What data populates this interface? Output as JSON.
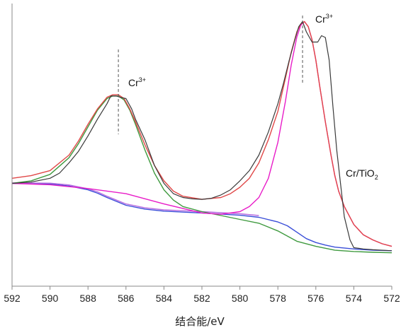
{
  "chart_data": {
    "type": "line",
    "title": "",
    "xlabel": "结合能/eV",
    "ylabel": "",
    "xlim": [
      592,
      572
    ],
    "x_reversed": true,
    "grid": false,
    "ticks": [
      "592",
      "590",
      "588",
      "586",
      "584",
      "582",
      "580",
      "578",
      "576",
      "574",
      "572"
    ],
    "annotations": {
      "peak_left": {
        "base": "Cr",
        "sup": "3+",
        "x": 586.4
      },
      "peak_right": {
        "base": "Cr",
        "sup": "3+",
        "x": 576.7
      },
      "sample": {
        "base": "Cr/TiO",
        "sub": "2"
      }
    },
    "colors": {
      "measured": "#3a3a3a",
      "fit_envelope": "#e04848",
      "component_right": "#e81cc8",
      "component_left": "#3f9a3f",
      "background": "#3a4ed8",
      "background_alt": "#b86ce0",
      "marker": "#555555"
    },
    "series": [
      {
        "role": "measured",
        "x": [
          592,
          591,
          590,
          589.5,
          589,
          588.5,
          588,
          587.5,
          587,
          586.8,
          586.5,
          586.3,
          586,
          585.7,
          585.5,
          585,
          584.5,
          584,
          583.5,
          583,
          582.5,
          582,
          581.5,
          581,
          580.5,
          580,
          579.5,
          579,
          578.5,
          578,
          577.7,
          577.4,
          577.1,
          576.9,
          576.7,
          576.5,
          576.2,
          575.9,
          575.7,
          575.5,
          575.3,
          575.1,
          574.9,
          574.7,
          574.5,
          574.2,
          574,
          573.5,
          573,
          572.5,
          572
        ],
        "y": [
          0.4,
          0.405,
          0.42,
          0.44,
          0.48,
          0.525,
          0.585,
          0.65,
          0.71,
          0.74,
          0.74,
          0.735,
          0.73,
          0.69,
          0.65,
          0.57,
          0.47,
          0.4,
          0.36,
          0.345,
          0.34,
          0.338,
          0.342,
          0.355,
          0.375,
          0.41,
          0.45,
          0.51,
          0.6,
          0.71,
          0.79,
          0.88,
          0.96,
          1.01,
          1.03,
          0.99,
          0.95,
          0.95,
          0.975,
          0.968,
          0.88,
          0.7,
          0.53,
          0.4,
          0.27,
          0.18,
          0.15,
          0.145,
          0.142,
          0.14,
          0.138
        ]
      },
      {
        "role": "fit_envelope",
        "x": [
          592,
          591,
          590,
          589,
          588.5,
          588,
          587.5,
          587,
          586.7,
          586.4,
          586.1,
          585.8,
          585.5,
          585,
          584.5,
          584,
          583.5,
          583,
          582,
          581,
          580.5,
          580,
          579.5,
          579,
          578.5,
          578,
          577.6,
          577.3,
          577,
          576.8,
          576.6,
          576.4,
          576.2,
          576,
          575.8,
          575.5,
          575.2,
          575,
          574.8,
          574.5,
          574,
          573.5,
          573,
          572.5,
          572
        ],
        "y": [
          0.42,
          0.43,
          0.45,
          0.51,
          0.565,
          0.63,
          0.69,
          0.735,
          0.745,
          0.745,
          0.73,
          0.69,
          0.64,
          0.55,
          0.47,
          0.41,
          0.37,
          0.35,
          0.338,
          0.345,
          0.36,
          0.385,
          0.42,
          0.48,
          0.57,
          0.68,
          0.81,
          0.91,
          0.99,
          1.02,
          1.03,
          1.01,
          0.96,
          0.88,
          0.78,
          0.64,
          0.51,
          0.43,
          0.37,
          0.31,
          0.24,
          0.2,
          0.18,
          0.165,
          0.155
        ]
      },
      {
        "role": "component_right",
        "x": [
          592,
          590,
          588,
          586,
          584,
          582,
          581,
          580,
          579.5,
          579,
          578.5,
          578,
          577.6,
          577.3,
          577,
          576.8,
          576.6,
          576.4,
          576.2,
          576,
          575.8,
          575.5,
          575.2,
          575,
          574.8,
          574.5,
          574,
          573.5,
          573,
          572.5,
          572
        ],
        "y": [
          0.4,
          0.395,
          0.38,
          0.36,
          0.32,
          0.285,
          0.28,
          0.29,
          0.31,
          0.345,
          0.42,
          0.56,
          0.72,
          0.86,
          0.97,
          1.015,
          1.03,
          1.01,
          0.96,
          0.88,
          0.78,
          0.64,
          0.51,
          0.43,
          0.37,
          0.31,
          0.24,
          0.2,
          0.18,
          0.165,
          0.155
        ]
      },
      {
        "role": "component_left",
        "x": [
          592,
          591,
          590,
          589,
          588.5,
          588,
          587.5,
          587,
          586.7,
          586.4,
          586.1,
          585.8,
          585.5,
          585,
          584.5,
          584,
          583.5,
          583,
          582,
          581,
          580,
          579,
          578,
          577,
          576,
          575,
          574,
          573,
          572
        ],
        "y": [
          0.4,
          0.41,
          0.435,
          0.5,
          0.555,
          0.62,
          0.685,
          0.73,
          0.74,
          0.74,
          0.725,
          0.685,
          0.63,
          0.53,
          0.44,
          0.375,
          0.335,
          0.31,
          0.29,
          0.275,
          0.26,
          0.245,
          0.215,
          0.175,
          0.155,
          0.14,
          0.135,
          0.132,
          0.13
        ]
      },
      {
        "role": "background",
        "x": [
          592,
          590,
          589,
          588,
          587.5,
          587,
          586.5,
          586,
          585,
          584,
          582,
          580,
          579,
          578,
          577.5,
          577,
          576.5,
          576,
          575.5,
          575,
          574,
          573,
          572
        ],
        "y": [
          0.4,
          0.398,
          0.39,
          0.375,
          0.362,
          0.345,
          0.33,
          0.315,
          0.3,
          0.292,
          0.285,
          0.276,
          0.268,
          0.25,
          0.235,
          0.21,
          0.185,
          0.17,
          0.16,
          0.152,
          0.145,
          0.14,
          0.138
        ]
      },
      {
        "role": "background_alt",
        "x": [
          592,
          590,
          589,
          588,
          587.5,
          587,
          586.5,
          586,
          585,
          584,
          582,
          580,
          579
        ],
        "y": [
          0.402,
          0.401,
          0.394,
          0.379,
          0.367,
          0.35,
          0.335,
          0.32,
          0.305,
          0.297,
          0.29,
          0.282,
          0.275
        ]
      }
    ]
  }
}
